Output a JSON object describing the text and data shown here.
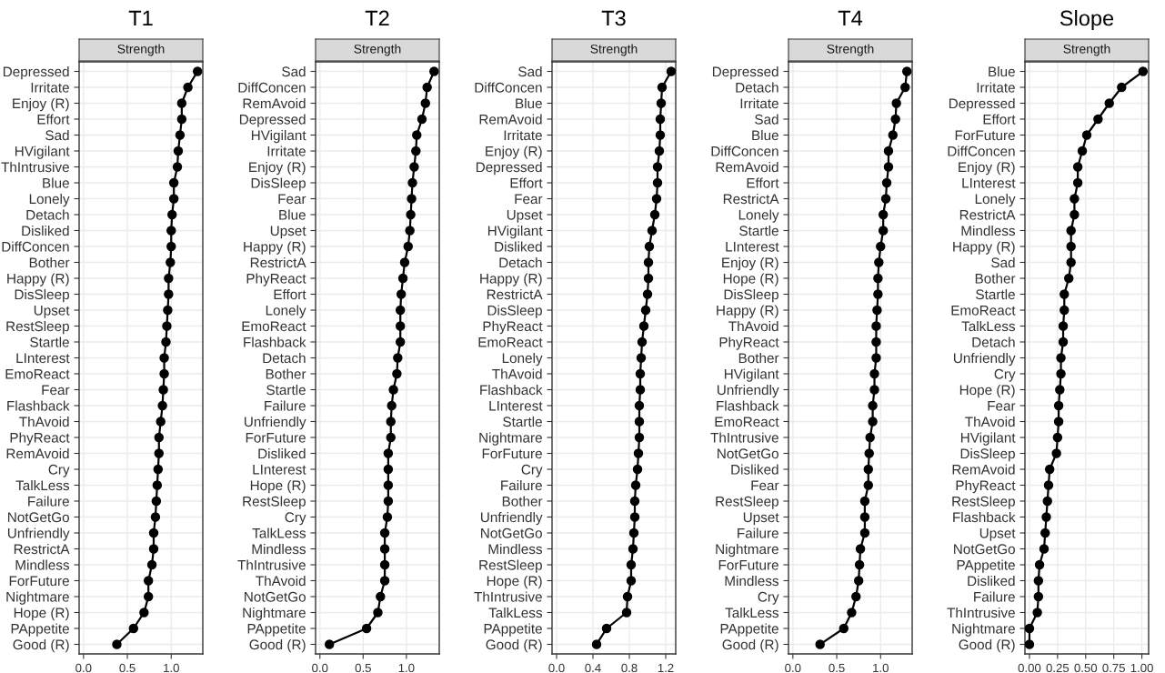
{
  "chart_data": [
    {
      "type": "line",
      "title": "T1",
      "subtitle": "Strength",
      "orientation": "horizontal",
      "marker": "circle",
      "line_style": "solid",
      "grid": true,
      "categories": [
        "Depressed",
        "Irritate",
        "Enjoy (R)",
        "Effort",
        "Sad",
        "HVigilant",
        "ThIntrusive",
        "Blue",
        "Lonely",
        "Detach",
        "Disliked",
        "DiffConcen",
        "Bother",
        "Happy (R)",
        "DisSleep",
        "Upset",
        "RestSleep",
        "Startle",
        "LInterest",
        "EmoReact",
        "Fear",
        "Flashback",
        "ThAvoid",
        "PhyReact",
        "RemAvoid",
        "Cry",
        "TalkLess",
        "Failure",
        "NotGetGo",
        "Unfriendly",
        "RestrictA",
        "Mindless",
        "ForFuture",
        "Nightmare",
        "Hope (R)",
        "PAppetite",
        "Good (R)"
      ],
      "series": [
        {
          "color": "#000000",
          "values": [
            1.3,
            1.19,
            1.12,
            1.12,
            1.1,
            1.08,
            1.07,
            1.03,
            1.03,
            1.01,
            1.0,
            1.0,
            0.99,
            0.97,
            0.97,
            0.96,
            0.95,
            0.94,
            0.92,
            0.92,
            0.91,
            0.9,
            0.88,
            0.86,
            0.86,
            0.85,
            0.84,
            0.83,
            0.82,
            0.8,
            0.8,
            0.78,
            0.74,
            0.74,
            0.69,
            0.57,
            0.38
          ]
        }
      ],
      "xlim": [
        -0.05,
        1.36
      ],
      "xticks": [
        {
          "value": 0,
          "label": "0.0"
        },
        {
          "value": 0.5,
          "label": "0.5"
        },
        {
          "value": 1,
          "label": "1.0"
        }
      ]
    },
    {
      "type": "line",
      "title": "T2",
      "subtitle": "Strength",
      "orientation": "horizontal",
      "marker": "circle",
      "line_style": "solid",
      "grid": true,
      "categories": [
        "Sad",
        "DiffConcen",
        "RemAvoid",
        "Depressed",
        "HVigilant",
        "Irritate",
        "Enjoy (R)",
        "DisSleep",
        "Fear",
        "Blue",
        "Upset",
        "Happy (R)",
        "RestrictA",
        "PhyReact",
        "Effort",
        "Lonely",
        "EmoReact",
        "Flashback",
        "Detach",
        "Bother",
        "Startle",
        "Failure",
        "Unfriendly",
        "ForFuture",
        "Disliked",
        "LInterest",
        "Hope (R)",
        "RestSleep",
        "Cry",
        "TalkLess",
        "Mindless",
        "ThIntrusive",
        "ThAvoid",
        "NotGetGo",
        "Nightmare",
        "PAppetite",
        "Good (R)"
      ],
      "series": [
        {
          "color": "#000000",
          "values": [
            1.32,
            1.24,
            1.22,
            1.18,
            1.12,
            1.11,
            1.09,
            1.07,
            1.06,
            1.05,
            1.04,
            1.02,
            0.98,
            0.96,
            0.94,
            0.93,
            0.93,
            0.93,
            0.9,
            0.89,
            0.85,
            0.83,
            0.82,
            0.82,
            0.79,
            0.79,
            0.79,
            0.79,
            0.78,
            0.75,
            0.75,
            0.75,
            0.75,
            0.7,
            0.67,
            0.54,
            0.11
          ]
        }
      ],
      "xlim": [
        -0.05,
        1.38
      ],
      "xticks": [
        {
          "value": 0,
          "label": "0.0"
        },
        {
          "value": 0.5,
          "label": "0.5"
        },
        {
          "value": 1,
          "label": "1.0"
        }
      ]
    },
    {
      "type": "line",
      "title": "T3",
      "subtitle": "Strength",
      "orientation": "horizontal",
      "marker": "circle",
      "line_style": "solid",
      "grid": true,
      "categories": [
        "Sad",
        "DiffConcen",
        "Blue",
        "RemAvoid",
        "Irritate",
        "Enjoy (R)",
        "Depressed",
        "Effort",
        "Fear",
        "Upset",
        "HVigilant",
        "Disliked",
        "Detach",
        "Happy (R)",
        "RestrictA",
        "DisSleep",
        "PhyReact",
        "EmoReact",
        "Lonely",
        "ThAvoid",
        "Flashback",
        "LInterest",
        "Startle",
        "Nightmare",
        "ForFuture",
        "Cry",
        "Failure",
        "Bother",
        "Unfriendly",
        "NotGetGo",
        "Mindless",
        "RestSleep",
        "Hope (R)",
        "ThIntrusive",
        "TalkLess",
        "PAppetite",
        "Good (R)"
      ],
      "series": [
        {
          "color": "#000000",
          "values": [
            1.26,
            1.16,
            1.15,
            1.14,
            1.14,
            1.13,
            1.11,
            1.11,
            1.1,
            1.08,
            1.05,
            1.02,
            1.01,
            1.01,
            1.0,
            0.98,
            0.96,
            0.94,
            0.93,
            0.92,
            0.92,
            0.91,
            0.91,
            0.91,
            0.9,
            0.89,
            0.87,
            0.86,
            0.86,
            0.85,
            0.84,
            0.82,
            0.82,
            0.78,
            0.77,
            0.55,
            0.44
          ]
        }
      ],
      "xlim": [
        -0.05,
        1.31
      ],
      "xticks": [
        {
          "value": 0,
          "label": "0.0"
        },
        {
          "value": 0.4,
          "label": "0.4"
        },
        {
          "value": 0.8,
          "label": "0.8"
        },
        {
          "value": 1.2,
          "label": "1.2"
        }
      ]
    },
    {
      "type": "line",
      "title": "T4",
      "subtitle": "Strength",
      "orientation": "horizontal",
      "marker": "circle",
      "line_style": "solid",
      "grid": true,
      "categories": [
        "Depressed",
        "Detach",
        "Irritate",
        "Sad",
        "Blue",
        "DiffConcen",
        "RemAvoid",
        "Effort",
        "RestrictA",
        "Lonely",
        "Startle",
        "LInterest",
        "Enjoy (R)",
        "Hope (R)",
        "DisSleep",
        "Happy (R)",
        "ThAvoid",
        "PhyReact",
        "Bother",
        "HVigilant",
        "Unfriendly",
        "Flashback",
        "EmoReact",
        "ThIntrusive",
        "NotGetGo",
        "Disliked",
        "Fear",
        "RestSleep",
        "Upset",
        "Failure",
        "Nightmare",
        "ForFuture",
        "Mindless",
        "Cry",
        "TalkLess",
        "PAppetite",
        "Good (R)"
      ],
      "series": [
        {
          "color": "#000000",
          "values": [
            1.3,
            1.28,
            1.18,
            1.17,
            1.14,
            1.09,
            1.09,
            1.07,
            1.06,
            1.03,
            1.03,
            1.0,
            0.98,
            0.97,
            0.97,
            0.96,
            0.95,
            0.95,
            0.95,
            0.93,
            0.93,
            0.91,
            0.91,
            0.88,
            0.87,
            0.86,
            0.86,
            0.82,
            0.82,
            0.82,
            0.77,
            0.76,
            0.75,
            0.72,
            0.67,
            0.58,
            0.31
          ]
        }
      ],
      "xlim": [
        -0.05,
        1.36
      ],
      "xticks": [
        {
          "value": 0,
          "label": "0.0"
        },
        {
          "value": 0.5,
          "label": "0.5"
        },
        {
          "value": 1,
          "label": "1.0"
        }
      ]
    },
    {
      "type": "line",
      "title": "Slope",
      "subtitle": "Strength",
      "orientation": "horizontal",
      "marker": "circle",
      "line_style": "solid",
      "grid": true,
      "categories": [
        "Blue",
        "Irritate",
        "Depressed",
        "Effort",
        "ForFuture",
        "DiffConcen",
        "Enjoy (R)",
        "LInterest",
        "Lonely",
        "RestrictA",
        "Mindless",
        "Happy (R)",
        "Sad",
        "Bother",
        "Startle",
        "EmoReact",
        "TalkLess",
        "Detach",
        "Unfriendly",
        "Cry",
        "Hope (R)",
        "Fear",
        "ThAvoid",
        "HVigilant",
        "DisSleep",
        "RemAvoid",
        "PhyReact",
        "RestSleep",
        "Flashback",
        "Upset",
        "NotGetGo",
        "PAppetite",
        "Disliked",
        "Failure",
        "ThIntrusive",
        "Nightmare",
        "Good (R)"
      ],
      "series": [
        {
          "color": "#000000",
          "values": [
            1.01,
            0.82,
            0.71,
            0.61,
            0.51,
            0.47,
            0.43,
            0.43,
            0.4,
            0.4,
            0.37,
            0.37,
            0.37,
            0.35,
            0.31,
            0.31,
            0.3,
            0.3,
            0.28,
            0.28,
            0.27,
            0.26,
            0.26,
            0.25,
            0.24,
            0.18,
            0.17,
            0.16,
            0.15,
            0.14,
            0.13,
            0.09,
            0.08,
            0.08,
            0.07,
            0.0,
            0.0
          ]
        }
      ],
      "xlim": [
        -0.04,
        1.06
      ],
      "xticks": [
        {
          "value": 0,
          "label": "0.00"
        },
        {
          "value": 0.25,
          "label": "0.25"
        },
        {
          "value": 0.5,
          "label": "0.50"
        },
        {
          "value": 0.75,
          "label": "0.75"
        },
        {
          "value": 1,
          "label": "1.00"
        }
      ]
    }
  ]
}
